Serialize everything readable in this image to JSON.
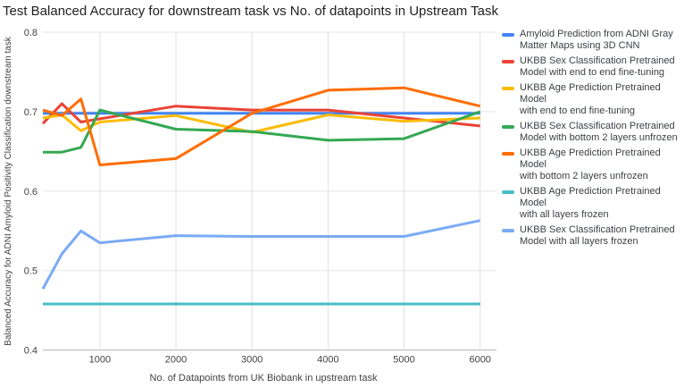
{
  "chart_data": {
    "type": "line",
    "title": "Test Balanced Accuracy for downstream task vs No. of datapoints in Upstream Task",
    "xlabel": "No. of Datapoints from UK Biobank in upstream task",
    "ylabel": "Balanced Accuracy for ADNI Amyloid Positivity Classification downstream task",
    "x": [
      250,
      500,
      750,
      1000,
      2000,
      3000,
      4000,
      5000,
      6000
    ],
    "xlim": [
      250,
      6000
    ],
    "ylim": [
      0.4,
      0.8
    ],
    "x_ticks": [
      1000,
      2000,
      3000,
      4000,
      5000,
      6000
    ],
    "y_ticks": [
      0.4,
      0.5,
      0.6,
      0.7,
      0.8
    ],
    "grid": true,
    "legend_position": "right",
    "series": [
      {
        "name": "Amyloid Prediction from ADNI Gray\nMatter Maps using 3D CNN",
        "color": "#4285F4",
        "values": [
          0.698,
          0.698,
          0.698,
          0.698,
          0.698,
          0.698,
          0.698,
          0.698,
          0.698
        ]
      },
      {
        "name": "UKBB Sex Classification Pretrained\nModel with end to end fine-tuning",
        "color": "#EA4335",
        "values": [
          0.685,
          0.71,
          0.687,
          0.691,
          0.707,
          0.702,
          0.702,
          0.692,
          0.682
        ]
      },
      {
        "name": "UKBB Age Prediction Pretrained Model\nwith end to end fine-tuning",
        "color": "#FBBC04",
        "values": [
          0.692,
          0.696,
          0.676,
          0.687,
          0.695,
          0.674,
          0.696,
          0.688,
          0.692
        ]
      },
      {
        "name": "UKBB Sex Classification Pretrained\nModel with bottom 2 layers unfrozen",
        "color": "#34A853",
        "values": [
          0.649,
          0.649,
          0.655,
          0.702,
          0.678,
          0.675,
          0.664,
          0.666,
          0.7
        ]
      },
      {
        "name": "UKBB Age Prediction Pretrained Model\nwith bottom 2 layers unfrozen",
        "color": "#FF6D01",
        "values": [
          0.702,
          0.695,
          0.716,
          0.633,
          0.641,
          0.698,
          0.727,
          0.73,
          0.707
        ]
      },
      {
        "name": "UKBB Age Prediction Pretrained Model\nwith all layers frozen",
        "color": "#46BDC6",
        "values": [
          0.458,
          0.458,
          0.458,
          0.458,
          0.458,
          0.458,
          0.458,
          0.458,
          0.458
        ]
      },
      {
        "name": "UKBB Sex Classification Pretrained\nModel with all layers frozen",
        "color": "#7BAAF7",
        "values": [
          0.477,
          0.521,
          0.55,
          0.535,
          0.544,
          0.543,
          0.543,
          0.543,
          0.563
        ]
      }
    ]
  }
}
